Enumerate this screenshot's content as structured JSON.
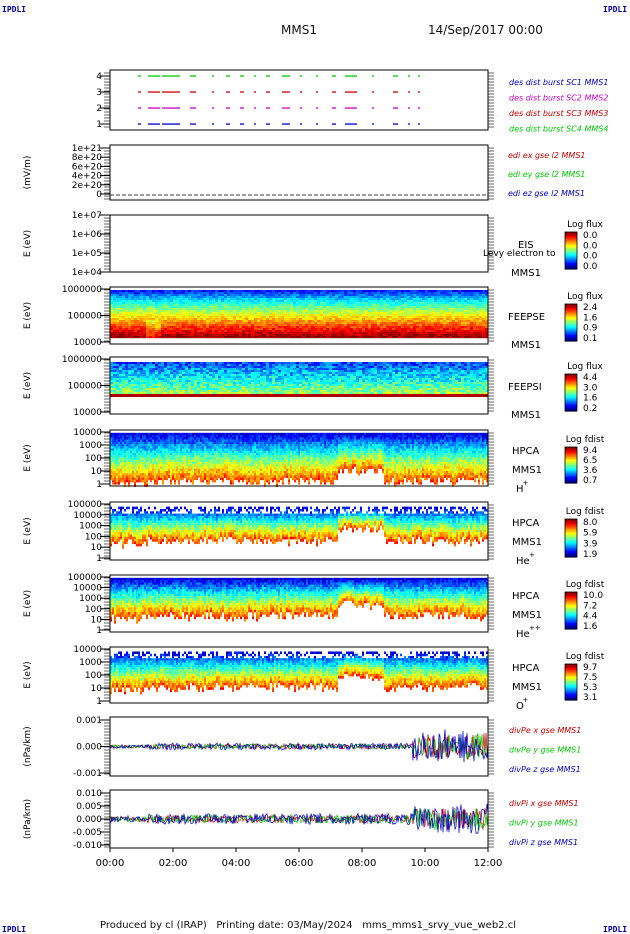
{
  "header": {
    "corner_tl": "IPDLI",
    "corner_tr": "IPDLI",
    "corner_bl": "IPDLI",
    "corner_br": "IPDLI",
    "spacecraft": "MMS1",
    "date": "14/Sep/2017 00:00"
  },
  "footer": {
    "text": "Produced by cl (IRAP)   Printing date: 03/May/2024   mms_mms1_srvy_vue_web2.cl"
  },
  "colors": {
    "panel_border": "#000000",
    "red": "#cc0000",
    "green": "#00cc00",
    "blue": "#0000cc",
    "magenta": "#cc00cc"
  },
  "chart_data": [
    {
      "type": "scatter",
      "yticks": [
        "4",
        "3",
        "2",
        "1"
      ],
      "series": [
        {
          "name": "des dist burst SC1 MMS1",
          "color": "#0000cc"
        },
        {
          "name": "des dist burst SC2 MMS2",
          "color": "#cc00cc"
        },
        {
          "name": "des dist burst SC3 MMS3",
          "color": "#cc0000"
        },
        {
          "name": "des dist burst SC4 MMS4",
          "color": "#00cc00"
        }
      ]
    },
    {
      "type": "line",
      "ylabel": "(mV/m)",
      "yticks": [
        "1e+21",
        "8e+20",
        "6e+20",
        "4e+20",
        "2e+20",
        "0"
      ],
      "series": [
        {
          "name": "edi ex gse l2 MMS1",
          "color": "#cc0000"
        },
        {
          "name": "edi ey gse l2 MMS1",
          "color": "#00cc00"
        },
        {
          "name": "edi ez gse l2 MMS1",
          "color": "#0000cc"
        }
      ]
    },
    {
      "type": "heatmap",
      "ylabel": "E (eV)",
      "yticks": [
        "1e+07",
        "1e+06",
        "1e+05",
        "1e+04"
      ],
      "instrument": [
        "EIS",
        "MMS1"
      ],
      "overlay_text": "Levy electron to",
      "colorbar_title": "Log flux",
      "colorbar_ticks": [
        "0.0",
        "0.0",
        "0.0",
        "0.0"
      ]
    },
    {
      "type": "heatmap",
      "ylabel": "E (eV)",
      "yticks": [
        "1000000",
        "100000",
        "10000"
      ],
      "instrument": [
        "FEEPSE",
        "MMS1"
      ],
      "colorbar_title": "Log flux",
      "colorbar_ticks": [
        "2.4",
        "1.6",
        "0.9",
        "0.1"
      ]
    },
    {
      "type": "heatmap",
      "ylabel": "E (eV)",
      "yticks": [
        "1000000",
        "100000",
        "10000"
      ],
      "instrument": [
        "FEEPSI",
        "MMS1"
      ],
      "colorbar_title": "Log flux",
      "colorbar_ticks": [
        "4.4",
        "3.0",
        "1.6",
        "0.2"
      ]
    },
    {
      "type": "heatmap",
      "ylabel": "E (eV)",
      "yticks": [
        "10000",
        "1000",
        "100",
        "10",
        "1"
      ],
      "instrument": [
        "HPCA",
        "MMS1",
        "H",
        "+"
      ],
      "colorbar_title": "Log fdist",
      "colorbar_ticks": [
        "9.4",
        "6.5",
        "3.6",
        "0.7"
      ]
    },
    {
      "type": "heatmap",
      "ylabel": "E (eV)",
      "yticks": [
        "100000",
        "10000",
        "1000",
        "100",
        "10",
        "1"
      ],
      "instrument": [
        "HPCA",
        "MMS1",
        "He",
        "+"
      ],
      "colorbar_title": "Log fdist",
      "colorbar_ticks": [
        "8.0",
        "5.9",
        "3.9",
        "1.9"
      ]
    },
    {
      "type": "heatmap",
      "ylabel": "E (eV)",
      "yticks": [
        "100000",
        "10000",
        "1000",
        "100",
        "10",
        "1"
      ],
      "instrument": [
        "HPCA",
        "MMS1",
        "He",
        "++"
      ],
      "colorbar_title": "Log fdist",
      "colorbar_ticks": [
        "10.0",
        "7.2",
        "4.4",
        "1.6"
      ]
    },
    {
      "type": "heatmap",
      "ylabel": "E (eV)",
      "yticks": [
        "10000",
        "1000",
        "100",
        "10",
        "1"
      ],
      "instrument": [
        "HPCA",
        "MMS1",
        "O",
        "+"
      ],
      "colorbar_title": "Log fdist",
      "colorbar_ticks": [
        "9.7",
        "7.5",
        "5.3",
        "3.1"
      ]
    },
    {
      "type": "line",
      "ylabel": "(nPa/km)",
      "yticks": [
        "0.001",
        "0.000",
        "-0.001"
      ],
      "series": [
        {
          "name": "divPe x gse MMS1",
          "color": "#cc0000"
        },
        {
          "name": "divPe y gse MMS1",
          "color": "#00cc00"
        },
        {
          "name": "divPe z gse MMS1",
          "color": "#0000cc"
        }
      ]
    },
    {
      "type": "line",
      "ylabel": "(nPa/km)",
      "yticks": [
        "0.010",
        "0.005",
        "0.000",
        "-0.005",
        "-0.010"
      ],
      "series": [
        {
          "name": "divPi x gse MMS1",
          "color": "#cc0000"
        },
        {
          "name": "divPi y gse MMS1",
          "color": "#00cc00"
        },
        {
          "name": "divPi z gse MMS1",
          "color": "#0000cc"
        }
      ]
    }
  ],
  "xaxis": {
    "ticks": [
      "00:00",
      "02:00",
      "04:00",
      "06:00",
      "08:00",
      "10:00",
      "12:00"
    ]
  }
}
